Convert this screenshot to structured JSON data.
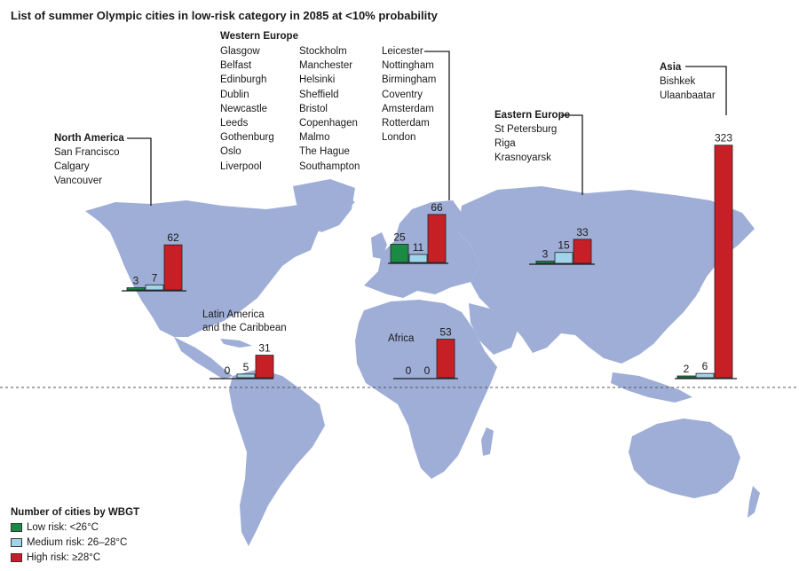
{
  "title": "List of summer Olympic cities in low-risk category in 2085 at <10% probability",
  "colors": {
    "land": "#9eaed6",
    "low": "#1a8a45",
    "medium": "#9fd4ea",
    "high": "#c62026",
    "ocean": "#ffffff"
  },
  "regions": {
    "western_europe": {
      "name": "Western Europe",
      "columns": [
        [
          "Glasgow",
          "Belfast",
          "Edinburgh",
          "Dublin",
          "Newcastle",
          "Leeds",
          "Gothenburg",
          "Oslo",
          "Liverpool"
        ],
        [
          "Stockholm",
          "Manchester",
          "Helsinki",
          "Sheffield",
          "Bristol",
          "Copenhagen",
          "Malmo",
          "The Hague",
          "Southampton"
        ],
        [
          "Leicester",
          "Nottingham",
          "Birmingham",
          "Coventry",
          "Amsterdam",
          "Rotterdam",
          "London"
        ]
      ]
    },
    "north_america": {
      "name": "North America",
      "cities": [
        "San Francisco",
        "Calgary",
        "Vancouver"
      ]
    },
    "eastern_europe": {
      "name": "Eastern Europe",
      "cities": [
        "St Petersburg",
        "Riga",
        "Krasnoyarsk"
      ]
    },
    "asia": {
      "name": "Asia",
      "cities": [
        "Bishkek",
        "Ulaanbaatar"
      ]
    }
  },
  "chart_labels": {
    "latin_america": "Latin America\nand the Caribbean",
    "africa": "Africa"
  },
  "chart_data": {
    "type": "bar",
    "categories": [
      "Low risk: <26°C",
      "Medium risk: 26–28°C",
      "High risk: ≥28°C"
    ],
    "groups": [
      {
        "id": "north_america",
        "values": [
          3,
          7,
          62
        ]
      },
      {
        "id": "western_europe",
        "values": [
          25,
          11,
          66
        ]
      },
      {
        "id": "eastern_europe",
        "values": [
          3,
          15,
          33
        ]
      },
      {
        "id": "latin_america",
        "values": [
          0,
          5,
          31
        ]
      },
      {
        "id": "africa",
        "values": [
          0,
          0,
          53
        ]
      },
      {
        "id": "asia",
        "values": [
          2,
          6,
          323
        ]
      }
    ]
  },
  "legend": {
    "title": "Number of cities by WBGT",
    "items": [
      {
        "label": "Low risk: <26°C",
        "color": "#1a8a45"
      },
      {
        "label": "Medium risk: 26–28°C",
        "color": "#9fd4ea"
      },
      {
        "label": "High risk: ≥28°C",
        "color": "#c62026"
      }
    ]
  }
}
